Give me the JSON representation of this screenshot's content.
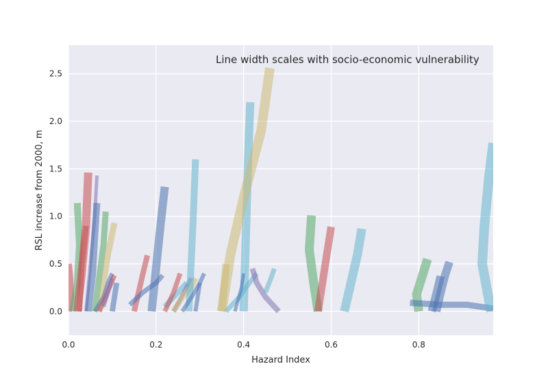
{
  "chart_data": {
    "type": "line",
    "annotation": "Line width scales with socio-economic vulnerability",
    "xlabel": "Hazard Index",
    "ylabel": "RSL increase from 2000, m",
    "xlim": [
      0.0,
      0.97
    ],
    "ylim": [
      -0.25,
      2.8
    ],
    "xticks": [
      "0.0",
      "0.2",
      "0.4",
      "0.6",
      "0.8"
    ],
    "yticks": [
      "0.0",
      "0.5",
      "1.0",
      "1.5",
      "2.0",
      "2.5"
    ],
    "grid": true,
    "background": "#eaeaf2",
    "colors": {
      "blue": "#4c72b0",
      "green": "#55a868",
      "red": "#c44e52",
      "purple": "#8172b2",
      "khaki": "#ccb974",
      "cyan": "#64b5cd"
    },
    "series": [
      {
        "color": "red",
        "width": 10,
        "x": [
          0.0,
          0.005,
          0.003,
          0.0
        ],
        "y": [
          0.0,
          0.15,
          0.35,
          0.5
        ]
      },
      {
        "color": "green",
        "width": 10,
        "x": [
          0.01,
          0.02,
          0.025,
          0.02
        ],
        "y": [
          0.0,
          0.3,
          0.7,
          1.14
        ]
      },
      {
        "color": "red",
        "width": 12,
        "x": [
          0.02,
          0.03,
          0.04,
          0.045
        ],
        "y": [
          0.0,
          0.4,
          0.9,
          1.46
        ]
      },
      {
        "color": "purple",
        "width": 5,
        "x": [
          0.04,
          0.05,
          0.06,
          0.065
        ],
        "y": [
          0.0,
          0.5,
          1.0,
          1.43
        ]
      },
      {
        "color": "blue",
        "width": 10,
        "x": [
          0.045,
          0.055,
          0.06,
          0.065
        ],
        "y": [
          0.0,
          0.4,
          0.8,
          1.14
        ]
      },
      {
        "color": "green",
        "width": 9,
        "x": [
          0.06,
          0.07,
          0.08,
          0.085
        ],
        "y": [
          0.0,
          0.35,
          0.7,
          1.05
        ]
      },
      {
        "color": "khaki",
        "width": 9,
        "x": [
          0.07,
          0.08,
          0.09,
          0.105
        ],
        "y": [
          0.0,
          0.3,
          0.6,
          0.93
        ]
      },
      {
        "color": "red",
        "width": 8,
        "x": [
          0.025,
          0.03,
          0.04
        ],
        "y": [
          0.0,
          0.45,
          0.9
        ]
      },
      {
        "color": "blue",
        "width": 6,
        "x": [
          0.06,
          0.08,
          0.09,
          0.1
        ],
        "y": [
          0.0,
          0.15,
          0.3,
          0.4
        ]
      },
      {
        "color": "red",
        "width": 7,
        "x": [
          0.07,
          0.085,
          0.095,
          0.105
        ],
        "y": [
          0.0,
          0.15,
          0.27,
          0.38
        ]
      },
      {
        "color": "purple",
        "width": 6,
        "x": [
          0.08,
          0.09,
          0.1
        ],
        "y": [
          0.05,
          0.2,
          0.35
        ]
      },
      {
        "color": "blue",
        "width": 8,
        "x": [
          0.1,
          0.105,
          0.11
        ],
        "y": [
          0.0,
          0.15,
          0.3
        ]
      },
      {
        "color": "red",
        "width": 8,
        "x": [
          0.15,
          0.16,
          0.17,
          0.18
        ],
        "y": [
          0.0,
          0.2,
          0.4,
          0.59
        ]
      },
      {
        "color": "blue",
        "width": 12,
        "x": [
          0.19,
          0.2,
          0.21,
          0.22
        ],
        "y": [
          0.0,
          0.45,
          0.9,
          1.31
        ]
      },
      {
        "color": "blue",
        "width": 7,
        "x": [
          0.14,
          0.17,
          0.2,
          0.215
        ],
        "y": [
          0.07,
          0.2,
          0.3,
          0.38
        ]
      },
      {
        "color": "cyan",
        "width": 8,
        "x": [
          0.22,
          0.24,
          0.26,
          0.27
        ],
        "y": [
          0.05,
          0.15,
          0.25,
          0.3
        ]
      },
      {
        "color": "red",
        "width": 7,
        "x": [
          0.22,
          0.24,
          0.255
        ],
        "y": [
          0.0,
          0.2,
          0.4
        ]
      },
      {
        "color": "purple",
        "width": 6,
        "x": [
          0.24,
          0.26,
          0.28
        ],
        "y": [
          0.0,
          0.17,
          0.35
        ]
      },
      {
        "color": "khaki",
        "width": 8,
        "x": [
          0.24,
          0.26,
          0.28,
          0.29
        ],
        "y": [
          0.0,
          0.15,
          0.25,
          0.35
        ]
      },
      {
        "color": "cyan",
        "width": 10,
        "x": [
          0.275,
          0.28,
          0.285,
          0.29
        ],
        "y": [
          0.0,
          0.5,
          1.0,
          1.6
        ]
      },
      {
        "color": "blue",
        "width": 6,
        "x": [
          0.26,
          0.285,
          0.3,
          0.31
        ],
        "y": [
          0.0,
          0.18,
          0.3,
          0.4
        ]
      },
      {
        "color": "blue",
        "width": 6,
        "x": [
          0.29,
          0.3
        ],
        "y": [
          0.0,
          0.3
        ]
      },
      {
        "color": "khaki",
        "width": 11,
        "x": [
          0.35,
          0.355,
          0.36
        ],
        "y": [
          0.0,
          0.25,
          0.5
        ]
      },
      {
        "color": "cyan",
        "width": 12,
        "x": [
          0.4,
          0.405,
          0.41,
          0.415
        ],
        "y": [
          0.0,
          0.8,
          1.6,
          2.2
        ]
      },
      {
        "color": "khaki",
        "width": 14,
        "x": [
          0.35,
          0.37,
          0.4,
          0.44,
          0.46
        ],
        "y": [
          0.0,
          0.6,
          1.2,
          1.9,
          2.56
        ]
      },
      {
        "color": "cyan",
        "width": 7,
        "x": [
          0.36,
          0.39,
          0.41,
          0.43
        ],
        "y": [
          0.0,
          0.15,
          0.28,
          0.4
        ]
      },
      {
        "color": "purple",
        "width": 8,
        "x": [
          0.42,
          0.43,
          0.45,
          0.48
        ],
        "y": [
          0.45,
          0.3,
          0.15,
          0.0
        ]
      },
      {
        "color": "blue",
        "width": 5,
        "x": [
          0.38,
          0.395,
          0.4
        ],
        "y": [
          0.0,
          0.25,
          0.4
        ]
      },
      {
        "color": "cyan",
        "width": 7,
        "x": [
          0.45,
          0.465,
          0.47
        ],
        "y": [
          0.2,
          0.38,
          0.45
        ]
      },
      {
        "color": "green",
        "width": 13,
        "x": [
          0.57,
          0.56,
          0.55,
          0.555
        ],
        "y": [
          0.0,
          0.3,
          0.65,
          1.01
        ]
      },
      {
        "color": "red",
        "width": 11,
        "x": [
          0.57,
          0.58,
          0.59,
          0.6
        ],
        "y": [
          0.0,
          0.3,
          0.6,
          0.89
        ]
      },
      {
        "color": "cyan",
        "width": 13,
        "x": [
          0.63,
          0.645,
          0.66,
          0.67
        ],
        "y": [
          0.0,
          0.3,
          0.6,
          0.87
        ]
      },
      {
        "color": "green",
        "width": 13,
        "x": [
          0.8,
          0.795,
          0.81,
          0.82
        ],
        "y": [
          0.0,
          0.18,
          0.4,
          0.55
        ]
      },
      {
        "color": "blue",
        "width": 12,
        "x": [
          0.83,
          0.84,
          0.85
        ],
        "y": [
          0.0,
          0.18,
          0.37
        ]
      },
      {
        "color": "blue",
        "width": 12,
        "x": [
          0.84,
          0.85,
          0.86,
          0.87
        ],
        "y": [
          0.0,
          0.2,
          0.38,
          0.52
        ]
      },
      {
        "color": "blue",
        "width": 9,
        "x": [
          0.78,
          0.85,
          0.91,
          0.97
        ],
        "y": [
          0.09,
          0.07,
          0.07,
          0.03
        ]
      },
      {
        "color": "cyan",
        "width": 14,
        "x": [
          0.965,
          0.955,
          0.945,
          0.95,
          0.96,
          0.97
        ],
        "y": [
          0.0,
          0.25,
          0.5,
          0.9,
          1.4,
          1.77
        ]
      }
    ]
  }
}
